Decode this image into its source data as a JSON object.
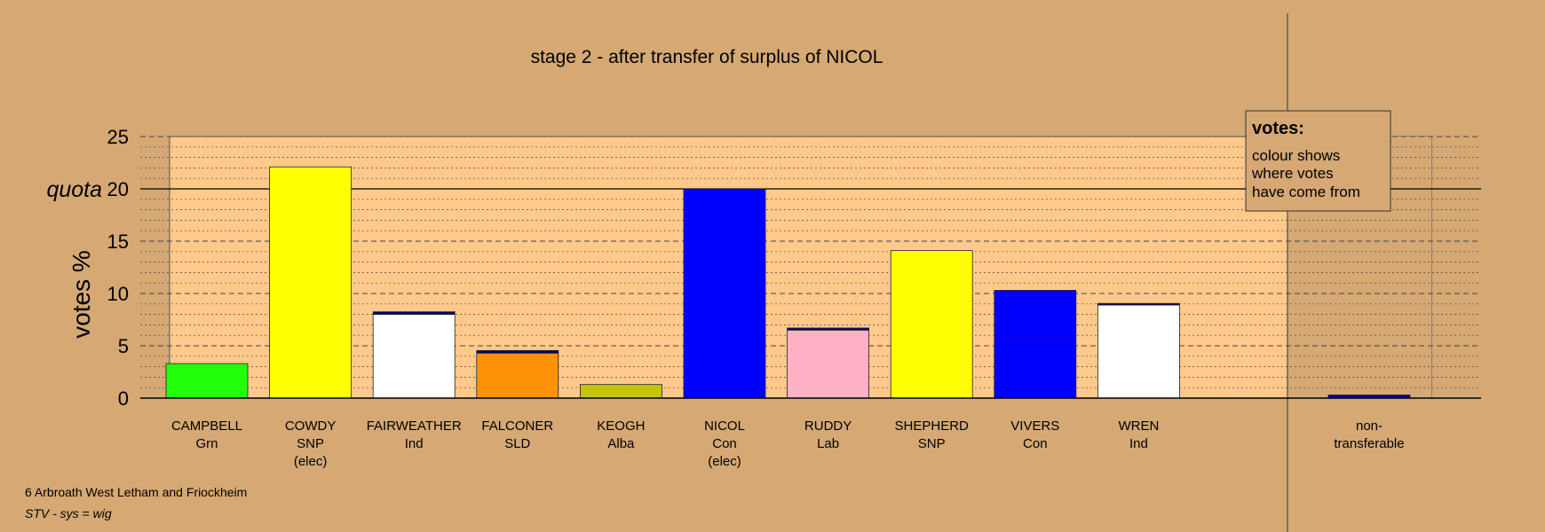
{
  "chart_data": {
    "type": "bar",
    "title": "stage 2 - after transfer of surplus of NICOL",
    "ylabel": "votes %",
    "ylim": [
      0,
      25
    ],
    "yticks": [
      0,
      5,
      10,
      15,
      20,
      25
    ],
    "quota": 20,
    "quota_label": "quota",
    "candidates": [
      {
        "name": "CAMPBELL",
        "party": "Grn",
        "note": "",
        "segments": [
          {
            "value": 3.3,
            "color": "#22ff0b"
          }
        ]
      },
      {
        "name": "COWDY",
        "party": "SNP",
        "note": "(elec)",
        "segments": [
          {
            "value": 22.1,
            "color": "#ffff00"
          }
        ]
      },
      {
        "name": "FAIRWEATHER",
        "party": "Ind",
        "note": "",
        "segments": [
          {
            "value": 8.0,
            "color": "#ffffff"
          },
          {
            "value": 0.25,
            "color": "#00007a"
          }
        ]
      },
      {
        "name": "FALCONER",
        "party": "SLD",
        "note": "",
        "segments": [
          {
            "value": 4.3,
            "color": "#ff9208"
          },
          {
            "value": 0.25,
            "color": "#00007a"
          }
        ]
      },
      {
        "name": "KEOGH",
        "party": "Alba",
        "note": "",
        "segments": [
          {
            "value": 1.3,
            "color": "#c3c40b"
          }
        ]
      },
      {
        "name": "NICOL",
        "party": "Con",
        "note": "(elec)",
        "segments": [
          {
            "value": 20.0,
            "color": "#0000ff"
          }
        ]
      },
      {
        "name": "RUDDY",
        "party": "Lab",
        "note": "",
        "segments": [
          {
            "value": 6.5,
            "color": "#ffb0c4"
          },
          {
            "value": 0.2,
            "color": "#00007a"
          }
        ]
      },
      {
        "name": "SHEPHERD",
        "party": "SNP",
        "note": "",
        "segments": [
          {
            "value": 14.1,
            "color": "#ffff00"
          }
        ]
      },
      {
        "name": "VIVERS",
        "party": "Con",
        "note": "",
        "segments": [
          {
            "value": 5.8,
            "color": "#0000ff"
          },
          {
            "value": 4.5,
            "color": "#0000ff"
          }
        ]
      },
      {
        "name": "WREN",
        "party": "Ind",
        "note": "",
        "segments": [
          {
            "value": 8.9,
            "color": "#ffffff"
          },
          {
            "value": 0.15,
            "color": "#00007a"
          }
        ]
      }
    ],
    "nontransferable": {
      "line1": "non-",
      "line2": "transferable",
      "value": 0.3,
      "color": "#0000b0"
    },
    "legend": {
      "title": "votes:",
      "lines": [
        "colour shows",
        "where votes",
        "have come from"
      ],
      "placement": "top-right"
    },
    "colors": {
      "background": "#d5a874",
      "plot_area": "#ffc98c",
      "shaded_area": "#d5a874"
    }
  },
  "footer": {
    "ward": "6 Arbroath West Letham and Friockheim",
    "system": "STV - sys = wig"
  }
}
